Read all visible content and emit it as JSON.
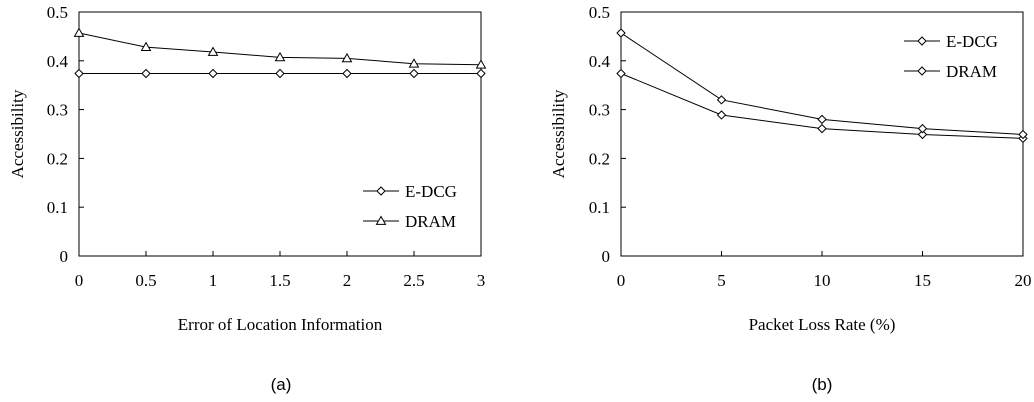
{
  "chart_data": [
    {
      "type": "line",
      "panel_caption": "(a)",
      "xlabel": "Error of Location Information",
      "ylabel": "Accessibility",
      "xlim": [
        0,
        3
      ],
      "ylim": [
        0,
        0.5
      ],
      "x_ticks": [
        "0",
        "0.5",
        "1",
        "1.5",
        "2",
        "2.5",
        "3"
      ],
      "y_ticks": [
        "0",
        "0.1",
        "0.2",
        "0.3",
        "0.4",
        "0.5"
      ],
      "grid": false,
      "legend_position": "bottom-right",
      "x": [
        0,
        0.5,
        1,
        1.5,
        2,
        2.5,
        3
      ],
      "series": [
        {
          "name": "E-DCG",
          "marker": "diamond",
          "values": [
            0.374,
            0.374,
            0.374,
            0.374,
            0.374,
            0.374,
            0.374
          ]
        },
        {
          "name": "DRAM",
          "marker": "triangle",
          "values": [
            0.457,
            0.428,
            0.418,
            0.407,
            0.405,
            0.394,
            0.392
          ]
        }
      ]
    },
    {
      "type": "line",
      "panel_caption": "(b)",
      "xlabel": "Packet Loss Rate (%)",
      "ylabel": "Accessibility",
      "xlim": [
        0,
        20
      ],
      "ylim": [
        0,
        0.5
      ],
      "x_ticks": [
        "0",
        "5",
        "10",
        "15",
        "20"
      ],
      "y_ticks": [
        "0",
        "0.1",
        "0.2",
        "0.3",
        "0.4",
        "0.5"
      ],
      "grid": false,
      "legend_position": "top-right",
      "x": [
        0,
        5,
        10,
        15,
        20
      ],
      "series": [
        {
          "name": "E-DCG",
          "marker": "diamond",
          "values": [
            0.374,
            0.289,
            0.261,
            0.249,
            0.241
          ]
        },
        {
          "name": "DRAM",
          "marker": "diamond",
          "values": [
            0.457,
            0.32,
            0.28,
            0.261,
            0.249
          ]
        }
      ]
    }
  ]
}
